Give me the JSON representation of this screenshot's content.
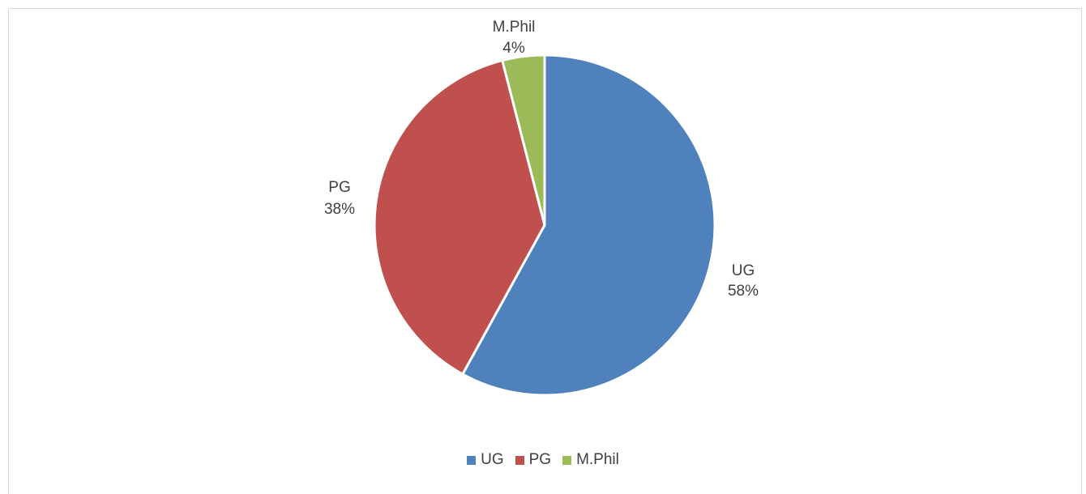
{
  "chart_data": {
    "type": "pie",
    "slices": [
      {
        "label": "UG",
        "value": 58,
        "display": "58%",
        "color": "#4F81BD"
      },
      {
        "label": "PG",
        "value": 38,
        "display": "38%",
        "color": "#C0504D"
      },
      {
        "label": "M.Phil",
        "value": 4,
        "display": "4%",
        "color": "#9BBB59"
      }
    ],
    "legend_position": "bottom"
  }
}
